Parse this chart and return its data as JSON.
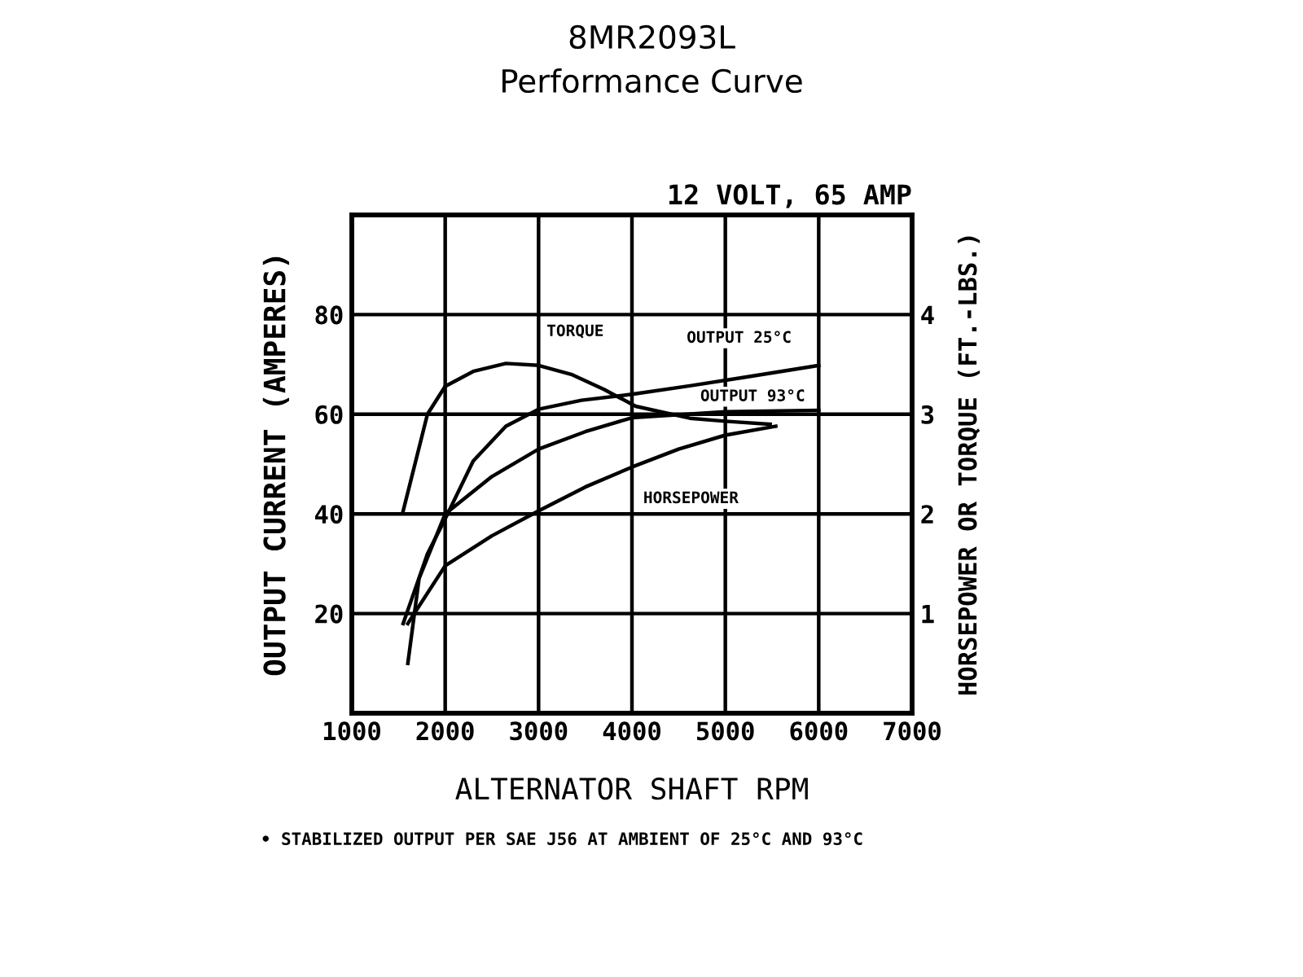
{
  "chart_data": {
    "type": "line",
    "title": "8MR2093L",
    "subtitle": "Performance Curve",
    "xlabel": "ALTERNATOR SHAFT RPM",
    "ylabel": "OUTPUT CURRENT (AMPERES)",
    "y2label": "HORSEPOWER OR TORQUE (FT.-LBS.)",
    "annotations": [
      "12 VOLT, 65 AMP",
      "• STABILIZED OUTPUT PER SAE J56 AT AMBIENT OF 25°C AND 93°C"
    ],
    "xlim": [
      1000,
      7000
    ],
    "xticks": [
      1000,
      2000,
      3000,
      4000,
      5000,
      6000,
      7000
    ],
    "ylim": [
      0,
      100
    ],
    "yticks": [
      20,
      40,
      60,
      80
    ],
    "y2lim": [
      0,
      5
    ],
    "y2ticks": [
      1,
      2,
      3,
      4
    ],
    "grid": true,
    "legend": false,
    "marker": "none",
    "line_style": "solid",
    "series": [
      {
        "name": "TORQUE",
        "color": "#000000",
        "axis": "y2",
        "x": [
          1550,
          1810,
          2000,
          2300,
          2650,
          3000,
          3350,
          3700,
          4040,
          4620,
          5000,
          5480
        ],
        "values": [
          2.03,
          3.0,
          3.28,
          3.43,
          3.51,
          3.49,
          3.4,
          3.25,
          3.08,
          2.96,
          2.93,
          2.9
        ]
      },
      {
        "name": "OUTPUT 25°C",
        "color": "#000000",
        "x": [
          1550,
          1810,
          2000,
          2300,
          2650,
          3000,
          3460,
          4000,
          4620,
          5200,
          6000
        ],
        "values": [
          18,
          32,
          39,
          50.6,
          57.6,
          61,
          62.8,
          64,
          65.7,
          67.4,
          69.8
        ]
      },
      {
        "name": "OUTPUT 93°C",
        "color": "#000000",
        "x": [
          1600,
          1720,
          2000,
          2500,
          3000,
          3500,
          4000,
          5000,
          6000
        ],
        "values": [
          10,
          27,
          40,
          47.5,
          53,
          56.5,
          59.3,
          60.5,
          60.8
        ]
      },
      {
        "name": "HORSEPOWER",
        "color": "#000000",
        "axis": "y2",
        "x": [
          1600,
          2000,
          2500,
          3000,
          3500,
          4000,
          4500,
          5000,
          5540
        ],
        "values": [
          0.9,
          1.48,
          1.78,
          2.03,
          2.27,
          2.47,
          2.65,
          2.79,
          2.88
        ]
      }
    ]
  }
}
